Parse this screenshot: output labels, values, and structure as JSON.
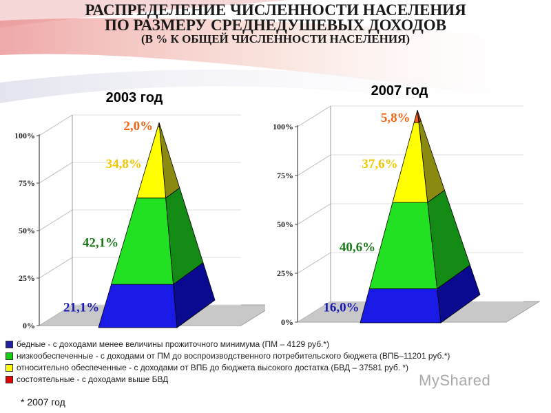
{
  "header": {
    "title_line1": "РАСПРЕДЕЛЕНИЕ ЧИСЛЕННОСТИ НАСЕЛЕНИЯ",
    "title_line2": "ПО РАЗМЕРУ СРЕДНЕДУШЕВЫХ ДОХОДОВ",
    "subtitle": "(В % К ОБЩЕЙ ЧИСЛЕННОСТИ НАСЕЛЕНИЯ)"
  },
  "colors": {
    "blue": "#1a1ae6",
    "green": "#22e022",
    "yellow": "#ffff00",
    "orange": "#f05a14",
    "label_blue": "#1a1ab0",
    "label_green": "#1a7a1a",
    "label_yellow": "#f0c800",
    "label_orange": "#f06414"
  },
  "chart_data": [
    {
      "type": "bar",
      "title": "2003 год",
      "y_ticks": [
        "0%",
        "25%",
        "50%",
        "75%",
        "100%"
      ],
      "ylim": [
        0,
        100
      ],
      "series": [
        {
          "name": "бедные",
          "value": 21.1,
          "label": "21,1%"
        },
        {
          "name": "низкообеспеченные",
          "value": 42.1,
          "label": "42,1%"
        },
        {
          "name": "относительно обеспеченные",
          "value": 34.8,
          "label": "34,8%"
        },
        {
          "name": "состоятельные",
          "value": 2.0,
          "label": "2,0%"
        }
      ]
    },
    {
      "type": "bar",
      "title": "2007 год",
      "y_ticks": [
        "0%",
        "25%",
        "50%",
        "75%",
        "100%"
      ],
      "ylim": [
        0,
        100
      ],
      "series": [
        {
          "name": "бедные",
          "value": 16.0,
          "label": "16,0%"
        },
        {
          "name": "низкообеспеченные",
          "value": 40.6,
          "label": "40,6%"
        },
        {
          "name": "относительно обеспеченные",
          "value": 37.6,
          "label": "37,6%"
        },
        {
          "name": "состоятельные",
          "value": 5.8,
          "label": "5,8%"
        }
      ]
    }
  ],
  "legend": [
    {
      "color": "#2020a0",
      "text": "бедные - с доходами менее величины прожиточного минимума (ПМ – 4129 руб.*)"
    },
    {
      "color": "#10d010",
      "text": "низкообеспеченные  - с доходами от ПМ до воспроизводственного  потребительского бюджета (ВПБ–11201 руб.*)"
    },
    {
      "color": "#ffff00",
      "text": "относительно обеспеченные  - с доходами от ВПБ до бюджета высокого достатка (БВД – 37581 руб. *)"
    },
    {
      "color": "#e00000",
      "text": "состоятельные  - с доходами выше БВД"
    }
  ],
  "footnote": "* 2007 год",
  "watermark": "MyShared"
}
